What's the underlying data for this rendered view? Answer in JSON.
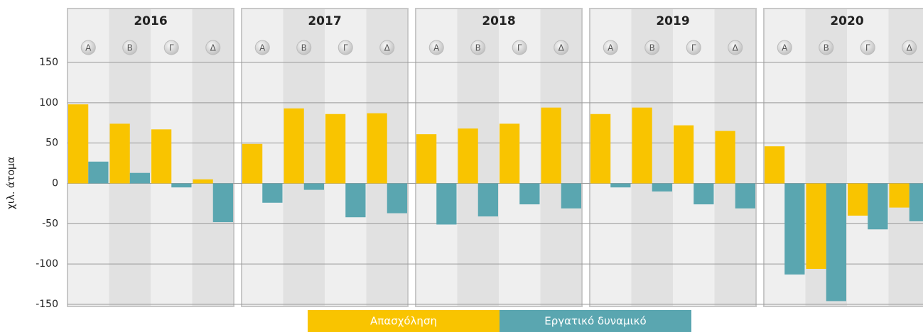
{
  "chart_data": {
    "type": "bar",
    "y_label": "χιλ. άτομα",
    "groups": [
      "2016",
      "2017",
      "2018",
      "2019",
      "2020"
    ],
    "categories": [
      "Α",
      "Β",
      "Γ",
      "Δ",
      "Α",
      "Β",
      "Γ",
      "Δ",
      "Α",
      "Β",
      "Γ",
      "Δ",
      "Α",
      "Β",
      "Γ",
      "Δ",
      "Α",
      "Β",
      "Γ",
      "Δ"
    ],
    "series": [
      {
        "name": "Απασχόληση",
        "color": "#f9c400",
        "values": [
          98,
          74,
          67,
          5,
          49,
          93,
          86,
          87,
          61,
          68,
          74,
          94,
          86,
          94,
          72,
          65,
          46,
          -106,
          -40,
          -30
        ]
      },
      {
        "name": "Εργατικό δυναμικό",
        "color": "#5aa6b0",
        "values": [
          27,
          13,
          -5,
          -48,
          -24,
          -8,
          -42,
          -37,
          -51,
          -41,
          -26,
          -31,
          -5,
          -10,
          -26,
          -31,
          -113,
          -146,
          -57,
          -47
        ]
      }
    ],
    "ylim": [
      -150,
      150
    ],
    "yticks": [
      -150,
      -100,
      -50,
      0,
      50,
      100,
      150
    ],
    "grid": true
  }
}
